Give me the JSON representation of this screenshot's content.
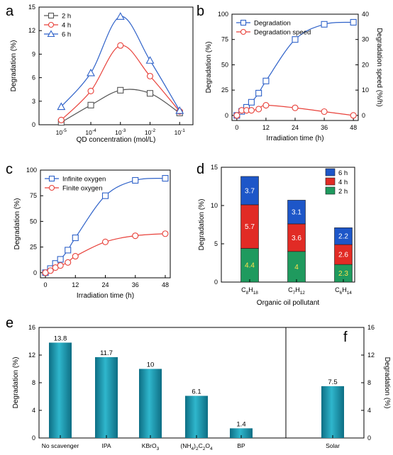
{
  "chart_data": [
    {
      "panel": "a",
      "type": "line",
      "xlabel": "QD concentration (mol/L)",
      "ylabel": "Degradation (%)",
      "xticks": [
        "10-5",
        "10-4",
        "10-3",
        "10-2",
        "10-1"
      ],
      "x_log": [
        -5,
        -4,
        -3,
        -2,
        -1
      ],
      "ylim": [
        0,
        15
      ],
      "yticks": [
        0,
        3,
        6,
        9,
        12,
        15
      ],
      "legend": "top-left",
      "series": [
        {
          "name": "2 h",
          "color": "#555555",
          "marker": "square",
          "values": [
            0.3,
            2.5,
            4.4,
            4.0,
            1.5
          ]
        },
        {
          "name": "4 h",
          "color": "#e8413a",
          "marker": "circle",
          "values": [
            0.6,
            4.3,
            10.1,
            6.2,
            1.7
          ]
        },
        {
          "name": "6 h",
          "color": "#2f62c9",
          "marker": "triangle",
          "values": [
            2.3,
            6.6,
            13.8,
            8.2,
            1.8
          ]
        }
      ]
    },
    {
      "panel": "b",
      "type": "line",
      "xlabel": "Irradiation time (h)",
      "ylabel": "Degradation (%)",
      "y2label": "Degradation speed (%/h)",
      "xticks": [
        0,
        12,
        24,
        36,
        48
      ],
      "xlim": [
        -2,
        50
      ],
      "ylim": [
        -5,
        100
      ],
      "yticks": [
        0,
        25,
        50,
        75,
        100
      ],
      "y2lim": [
        -2,
        40
      ],
      "y2ticks": [
        0,
        10,
        20,
        30,
        40
      ],
      "legend": "top-left",
      "series": [
        {
          "name": "Degradation",
          "color": "#2f62c9",
          "marker": "square",
          "axis": "left",
          "x": [
            0,
            2,
            4,
            6,
            9,
            12,
            24,
            36,
            48
          ],
          "values": [
            0,
            4,
            8,
            13,
            22,
            34,
            75,
            90,
            92
          ]
        },
        {
          "name": "Degradation speed",
          "color": "#e8413a",
          "marker": "circle",
          "axis": "right",
          "x": [
            0,
            2,
            4,
            6,
            9,
            12,
            24,
            36,
            48
          ],
          "values": [
            0,
            2,
            2,
            2,
            2.5,
            4,
            3,
            1.5,
            0
          ]
        }
      ]
    },
    {
      "panel": "c",
      "type": "line",
      "xlabel": "Irradiation time (h)",
      "ylabel": "Degradation (%)",
      "xticks": [
        0,
        12,
        24,
        36,
        48
      ],
      "xlim": [
        -2,
        50
      ],
      "ylim": [
        -5,
        100
      ],
      "yticks": [
        0,
        25,
        50,
        75,
        100
      ],
      "legend": "top-left",
      "series": [
        {
          "name": "Infinite oxygen",
          "color": "#2f62c9",
          "marker": "square",
          "x": [
            0,
            2,
            4,
            6,
            9,
            12,
            24,
            36,
            48
          ],
          "values": [
            0,
            4,
            9,
            13,
            22,
            34,
            75,
            90,
            92
          ]
        },
        {
          "name": "Finite oxygen",
          "color": "#e8413a",
          "marker": "circle",
          "x": [
            0,
            2,
            4,
            6,
            9,
            12,
            24,
            36,
            48
          ],
          "values": [
            0,
            2,
            5,
            7,
            10,
            16,
            30,
            36,
            38
          ]
        }
      ]
    },
    {
      "panel": "d",
      "type": "bar",
      "stacked": true,
      "xlabel": "Organic oil pollutant",
      "ylabel": "Degradation (%)",
      "categories": [
        "C8H18",
        "C7H12",
        "C6H14"
      ],
      "category_labels": [
        {
          "base": "C",
          "sub1": "8",
          "mid": "H",
          "sub2": "18"
        },
        {
          "base": "C",
          "sub1": "7",
          "mid": "H",
          "sub2": "12"
        },
        {
          "base": "C",
          "sub1": "6",
          "mid": "H",
          "sub2": "14"
        }
      ],
      "ylim": [
        0,
        15
      ],
      "yticks": [
        0,
        5,
        10,
        15
      ],
      "legend": "top-right",
      "series": [
        {
          "name": "2 h",
          "color": "#1f9a5e",
          "label_color": "#ffe14d",
          "values": [
            4.4,
            4.0,
            2.3
          ]
        },
        {
          "name": "4 h",
          "color": "#e12b25",
          "label_color": "#ffffff",
          "values": [
            5.7,
            3.6,
            2.6
          ]
        },
        {
          "name": "6 h",
          "color": "#1d56c8",
          "label_color": "#ffffff",
          "values": [
            3.7,
            3.1,
            2.2
          ]
        }
      ]
    },
    {
      "panel": "e",
      "type": "bar",
      "ylabel": "Degradation (%)",
      "categories": [
        "No scavenger",
        "IPA",
        "KBrO3",
        "(NH4)2C2O4",
        "BP"
      ],
      "values": [
        13.8,
        11.7,
        10,
        6.1,
        1.4
      ],
      "value_labels": [
        "13.8",
        "11.7",
        "10",
        "6.1",
        "1.4"
      ],
      "ylim": [
        0,
        16
      ],
      "yticks": [
        0,
        4,
        8,
        12,
        16
      ],
      "bar_color": "#1b8ea4"
    },
    {
      "panel": "f",
      "type": "bar",
      "ylabel": "Degradation (%)",
      "categories": [
        "Solar"
      ],
      "values": [
        7.5
      ],
      "value_labels": [
        "7.5"
      ],
      "ylim": [
        0,
        16
      ],
      "yticks": [
        0,
        4,
        8,
        12,
        16
      ],
      "bar_color": "#1b8ea4"
    }
  ],
  "panel_letters": {
    "a": "a",
    "b": "b",
    "c": "c",
    "d": "d",
    "e": "e",
    "f": "f"
  }
}
